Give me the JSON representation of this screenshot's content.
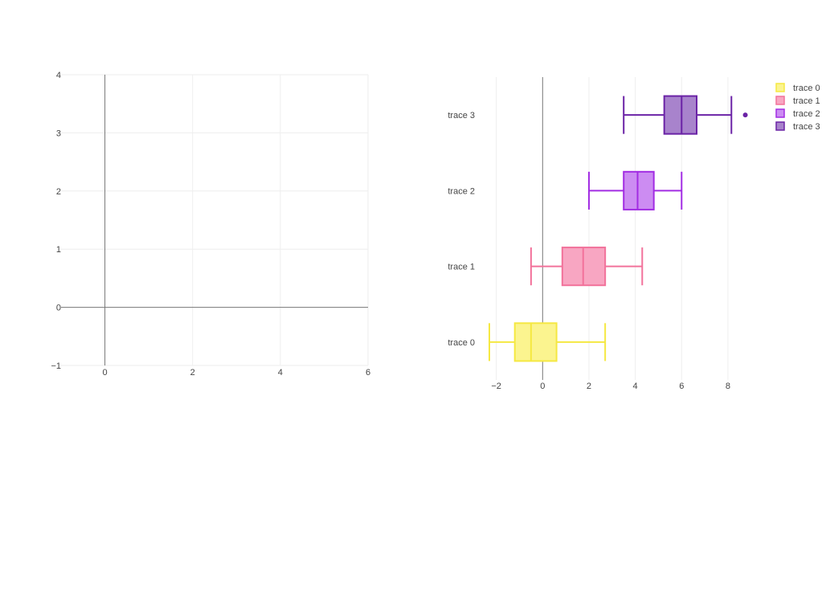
{
  "chart_data": [
    {
      "type": "scatter",
      "title": "",
      "xlabel": "",
      "ylabel": "",
      "xlim": [
        -1,
        6
      ],
      "ylim": [
        -1,
        4
      ],
      "x_ticks": [
        "0",
        "2",
        "4",
        "6"
      ],
      "y_ticks": [
        "−1",
        "0",
        "1",
        "2",
        "3",
        "4"
      ],
      "grid": true,
      "series": []
    },
    {
      "type": "box",
      "orientation": "horizontal",
      "title": "",
      "xlabel": "",
      "ylabel": "",
      "xlim": [
        -2.3,
        8.8
      ],
      "x_ticks": [
        "−2",
        "0",
        "2",
        "4",
        "6",
        "8"
      ],
      "grid": true,
      "legend_position": "top-right",
      "series": [
        {
          "name": "trace 0",
          "color": "#f5e842",
          "fill": "#fbf48f",
          "min": -2.3,
          "q1": -1.2,
          "median": -0.5,
          "q3": 0.6,
          "max": 2.7,
          "outliers": []
        },
        {
          "name": "trace 1",
          "color": "#f2729b",
          "fill": "#f8a6c2",
          "min": -0.5,
          "q1": 0.85,
          "median": 1.75,
          "q3": 2.7,
          "max": 4.3,
          "outliers": []
        },
        {
          "name": "trace 2",
          "color": "#a22de3",
          "fill": "#cc8cf2",
          "min": 2.0,
          "q1": 3.5,
          "median": 4.1,
          "q3": 4.8,
          "max": 6.0,
          "outliers": []
        },
        {
          "name": "trace 3",
          "color": "#6b23a6",
          "fill": "#a883cc",
          "min": 3.5,
          "q1": 5.25,
          "median": 6.0,
          "q3": 6.65,
          "max": 8.15,
          "outliers": [
            8.75
          ]
        }
      ]
    }
  ]
}
